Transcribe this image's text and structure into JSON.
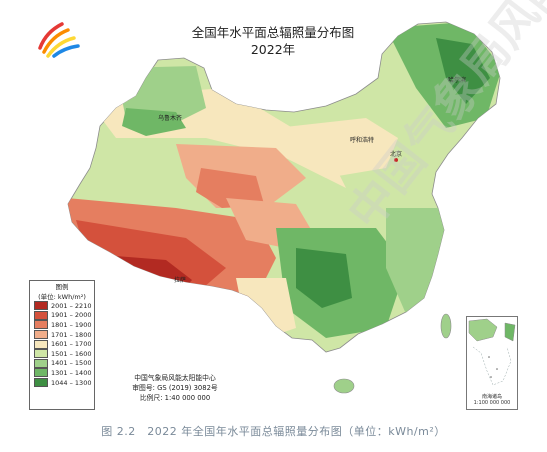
{
  "map": {
    "title": "全国年水平面总辐照量分布图",
    "year": "2022年"
  },
  "legend": {
    "title": "图例",
    "unit": "(单位: kWh/m²)",
    "items": [
      {
        "label": "2001 – 2210",
        "color": "#b22a22"
      },
      {
        "label": "1901 – 2000",
        "color": "#d4513c"
      },
      {
        "label": "1801 – 1900",
        "color": "#e57e60"
      },
      {
        "label": "1701 – 1800",
        "color": "#f0ad8a"
      },
      {
        "label": "1601 – 1700",
        "color": "#f7e7bd"
      },
      {
        "label": "1501 – 1600",
        "color": "#cfe6a6"
      },
      {
        "label": "1401 – 1500",
        "color": "#9fd08a"
      },
      {
        "label": "1301 – 1400",
        "color": "#6fb766"
      },
      {
        "label": "1044 – 1300",
        "color": "#3e8f43"
      }
    ]
  },
  "credits": {
    "org": "中国气象局风能太阳能中心",
    "approval": "审图号: GS (2019) 3082号",
    "scale": "比例尺: 1:40 000 000"
  },
  "inset": {
    "label_1": "南海诸岛",
    "label_2": "1:100 000 000"
  },
  "places": {
    "lhasa": "拉萨",
    "hohhot": "呼和浩特",
    "beijing": "北京",
    "harbin": "哈尔滨",
    "urumqi": "乌鲁木齐"
  },
  "caption": "图 2.2　2022 年全国年水平面总辐照量分布图（单位：kWh/m²）",
  "watermark": "中国气象局风能太阳能中心"
}
